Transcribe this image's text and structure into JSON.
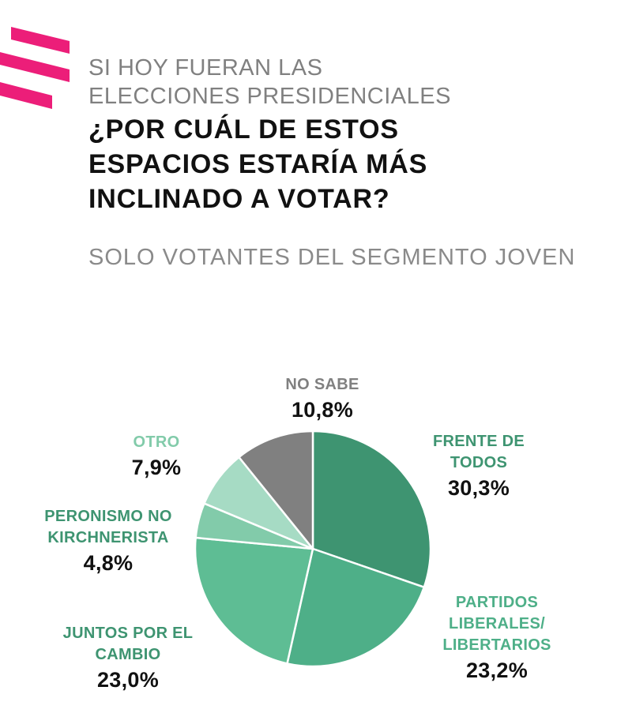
{
  "header": {
    "subtitle_lines": [
      "SI HOY FUERAN LAS",
      "ELECCIONES PRESIDENCIALES"
    ],
    "question_lines": [
      "¿POR CUÁL DE ESTOS",
      "ESPACIOS ESTARÍA MÁS",
      "INCLINADO A VOTAR?"
    ],
    "segment": "SOLO VOTANTES DEL SEGMENTO JOVEN"
  },
  "colors": {
    "brand_pink": "#EC1E79",
    "frente_de_todos": "#3E9471",
    "partidos_liberales": "#4EAF88",
    "juntos_por_el_cambio": "#5EBD94",
    "peronismo_no_kirchnerista": "#82CBAA",
    "otro": "#A6DBC4",
    "no_sabe": "#808080"
  },
  "chart_data": {
    "type": "pie",
    "title": "¿POR CUÁL DE ESTOS ESPACIOS ESTARÍA MÁS INCLINADO A VOTAR?",
    "subtitle": "SOLO VOTANTES DEL SEGMENTO JOVEN",
    "slices": [
      {
        "id": "frente",
        "label_lines": [
          "FRENTE DE",
          "TODOS"
        ],
        "value": 30.3,
        "value_label": "30,3%",
        "color": "#3E9471",
        "label_color": "#3E9471"
      },
      {
        "id": "liberales",
        "label_lines": [
          "PARTIDOS",
          "LIBERALES/",
          "LIBERTARIOS"
        ],
        "value": 23.2,
        "value_label": "23,2%",
        "color": "#4EAF88",
        "label_color": "#4EAF88"
      },
      {
        "id": "juntos",
        "label_lines": [
          "JUNTOS POR EL",
          "CAMBIO"
        ],
        "value": 23.0,
        "value_label": "23,0%",
        "color": "#5EBD94",
        "label_color": "#3E9471"
      },
      {
        "id": "peronismo",
        "label_lines": [
          "PERONISMO NO",
          "KIRCHNERISTA"
        ],
        "value": 4.8,
        "value_label": "4,8%",
        "color": "#82CBAA",
        "label_color": "#3E9471"
      },
      {
        "id": "otro",
        "label_lines": [
          "OTRO"
        ],
        "value": 7.9,
        "value_label": "7,9%",
        "color": "#A6DBC4",
        "label_color": "#82CBAA"
      },
      {
        "id": "nosabe",
        "label_lines": [
          "NO SABE"
        ],
        "value": 10.8,
        "value_label": "10,8%",
        "color": "#808080",
        "label_color": "#808080"
      }
    ]
  }
}
